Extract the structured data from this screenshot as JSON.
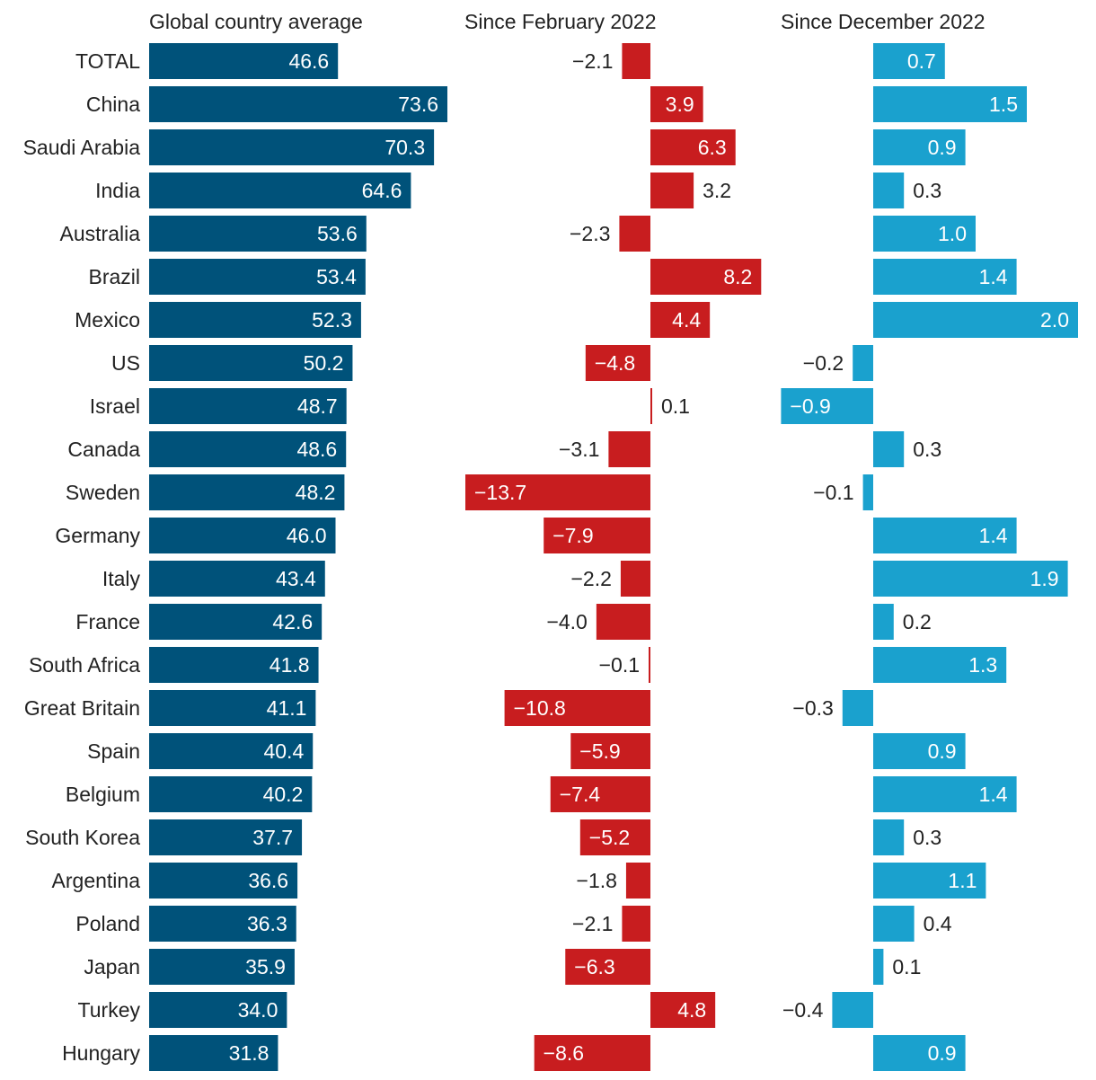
{
  "chart_data": {
    "type": "bar",
    "orientation": "horizontal",
    "categories": [
      "TOTAL",
      "China",
      "Saudi Arabia",
      "India",
      "Australia",
      "Brazil",
      "Mexico",
      "US",
      "Israel",
      "Canada",
      "Sweden",
      "Germany",
      "Italy",
      "France",
      "South Africa",
      "Great Britain",
      "Spain",
      "Belgium",
      "South Korea",
      "Argentina",
      "Poland",
      "Japan",
      "Turkey",
      "Hungary"
    ],
    "series": [
      {
        "name": "Global country average",
        "color": "#00527a",
        "values": [
          46.6,
          73.6,
          70.3,
          64.6,
          53.6,
          53.4,
          52.3,
          50.2,
          48.7,
          48.6,
          48.2,
          46.0,
          43.4,
          42.6,
          41.8,
          41.1,
          40.4,
          40.2,
          37.7,
          36.6,
          36.3,
          35.9,
          34.0,
          31.8
        ],
        "labels": [
          "46.6",
          "73.6",
          "70.3",
          "64.6",
          "53.6",
          "53.4",
          "52.3",
          "50.2",
          "48.7",
          "48.6",
          "48.2",
          "46.0",
          "43.4",
          "42.6",
          "41.8",
          "41.1",
          "40.4",
          "40.2",
          "37.7",
          "36.6",
          "36.3",
          "35.9",
          "34.0",
          "31.8"
        ]
      },
      {
        "name": "Since February 2022",
        "color": "#c81d1f",
        "values": [
          -2.1,
          3.9,
          6.3,
          3.2,
          -2.3,
          8.2,
          4.4,
          -4.8,
          0.1,
          -3.1,
          -13.7,
          -7.9,
          -2.2,
          -4.0,
          -0.1,
          -10.8,
          -5.9,
          -7.4,
          -5.2,
          -1.8,
          -2.1,
          -6.3,
          4.8,
          -8.6
        ],
        "labels": [
          "−2.1",
          "3.9",
          "6.3",
          "3.2",
          "−2.3",
          "8.2",
          "4.4",
          "−4.8",
          "0.1",
          "−3.1",
          "−13.7",
          "−7.9",
          "−2.2",
          "−4.0",
          "−0.1",
          "−10.8",
          "−5.9",
          "−7.4",
          "−5.2",
          "−1.8",
          "−2.1",
          "−6.3",
          "4.8",
          "−8.6"
        ]
      },
      {
        "name": "Since December 2022",
        "color": "#1aa1ce",
        "values": [
          0.7,
          1.5,
          0.9,
          0.3,
          1.0,
          1.4,
          2.0,
          -0.2,
          -0.9,
          0.3,
          -0.1,
          1.4,
          1.9,
          0.2,
          1.3,
          -0.3,
          0.9,
          1.4,
          0.3,
          1.1,
          0.4,
          0.1,
          -0.4,
          0.9
        ],
        "labels": [
          "0.7",
          "1.5",
          "0.9",
          "0.3",
          "1.0",
          "1.4",
          "2.0",
          "−0.2",
          "−0.9",
          "0.3",
          "−0.1",
          "1.4",
          "1.9",
          "0.2",
          "1.3",
          "−0.3",
          "0.9",
          "1.4",
          "0.3",
          "1.1",
          "0.4",
          "0.1",
          "−0.4",
          "0.9"
        ]
      }
    ],
    "panel_titles": [
      "Global country average",
      "Since February 2022",
      "Since December 2022"
    ],
    "xlim": [
      [
        0,
        73.6
      ],
      [
        -13.7,
        8.2
      ],
      [
        -0.9,
        2.0
      ]
    ],
    "grid": false,
    "legend": "none"
  }
}
